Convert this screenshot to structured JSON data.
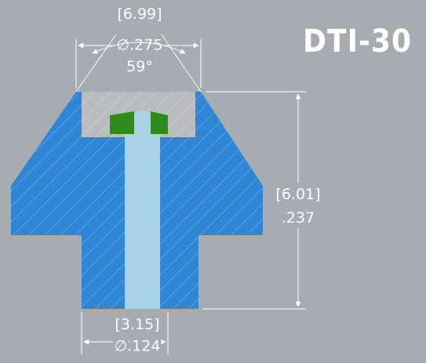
{
  "title": "DTI-30",
  "dimensions": {
    "top_metric": "[6.99]",
    "top_imperial": "∅.275",
    "angle": "59°",
    "height_metric": "[6.01]",
    "height_imperial": ".237",
    "bottom_metric": "[3.15]",
    "bottom_imperial": "∅.124"
  },
  "colors": {
    "background": "#a7acb0",
    "body": "#2f86d4",
    "bore": "#a9d2e4",
    "pocket": "#b9bcbf",
    "seal": "#2f8a1d",
    "dimension": "#ffffff"
  }
}
